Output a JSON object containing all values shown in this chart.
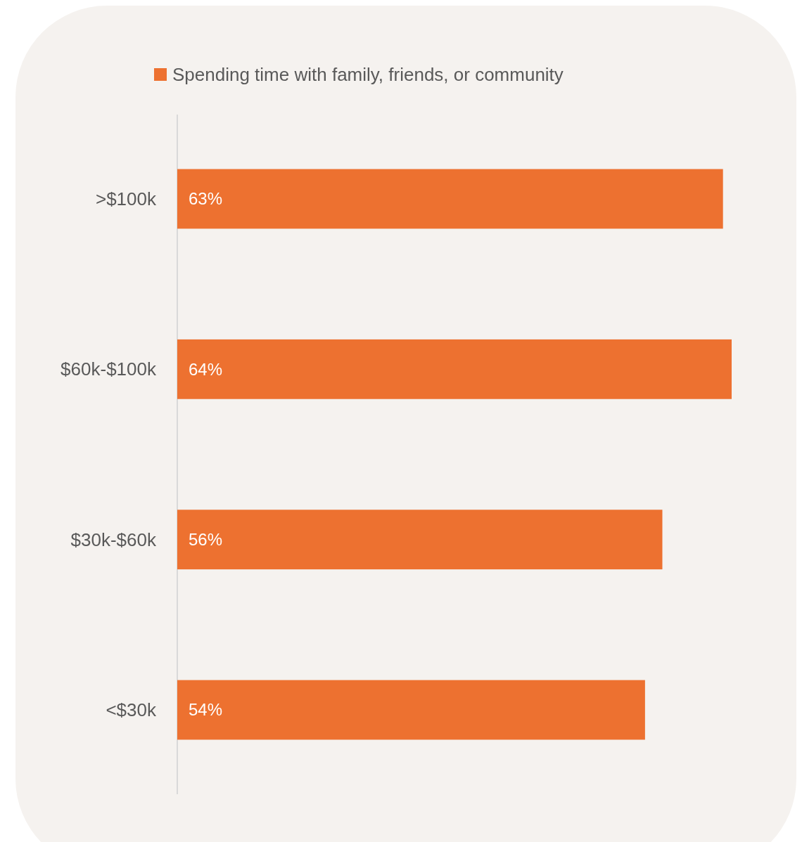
{
  "chart_data": {
    "type": "bar",
    "orientation": "horizontal",
    "categories": [
      ">$100k",
      "$60k-$100k",
      "$30k-$60k",
      "<$30k"
    ],
    "series": [
      {
        "name": "Spending time with family, friends, or community",
        "color": "#ed7130",
        "values": [
          63,
          64,
          56,
          54
        ],
        "value_labels": [
          "63%",
          "64%",
          "56%",
          "54%"
        ]
      }
    ],
    "legend": "top"
  }
}
